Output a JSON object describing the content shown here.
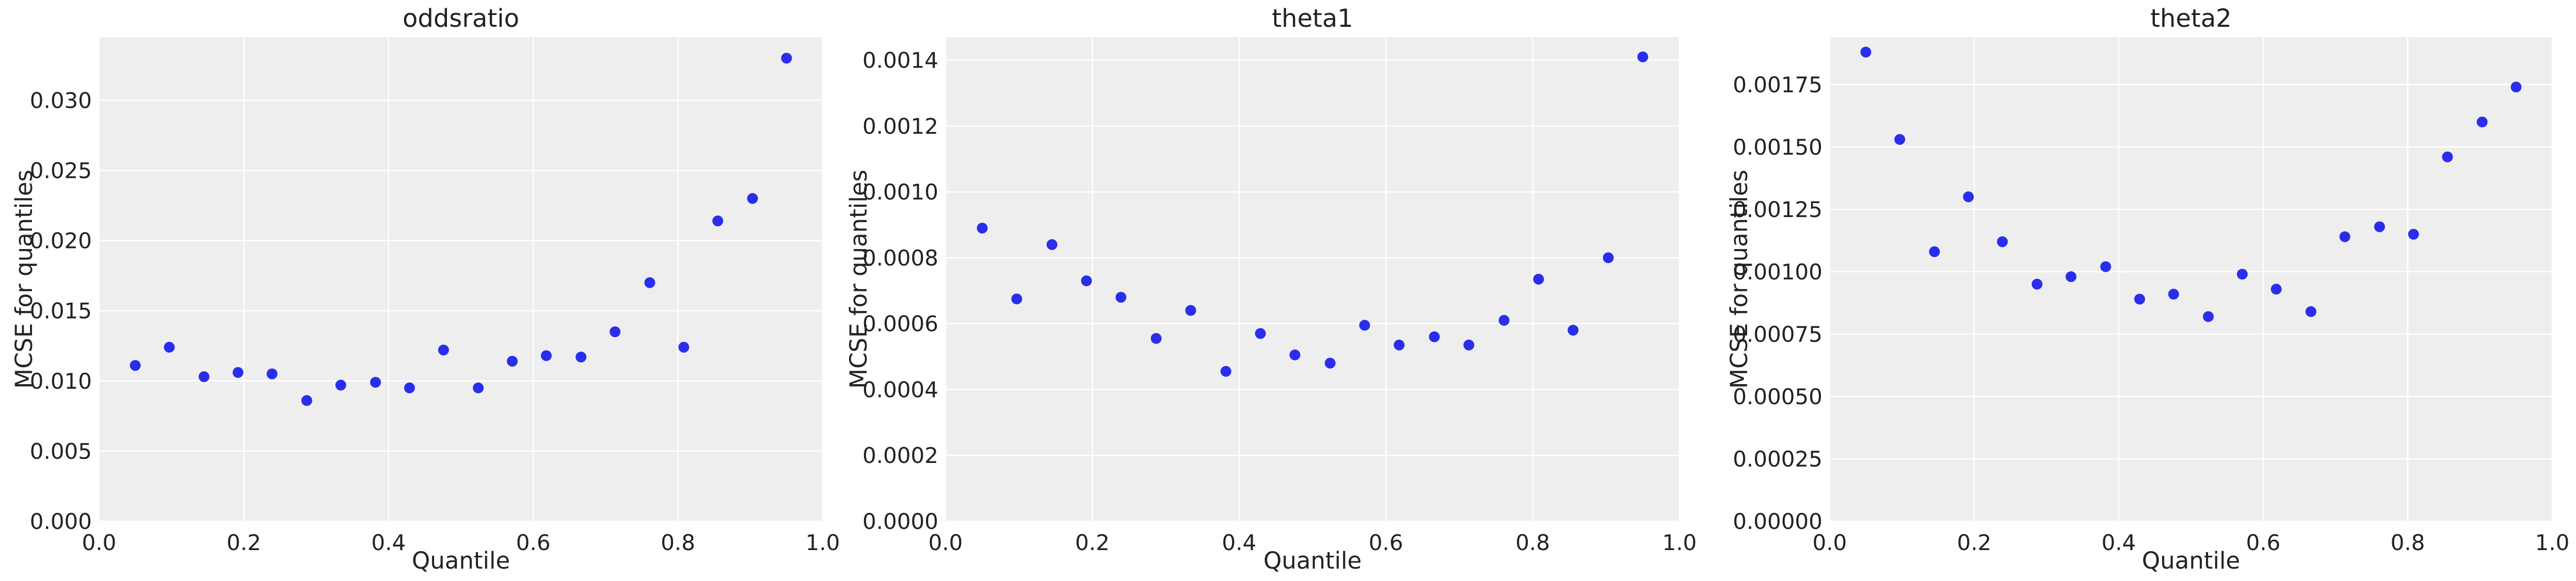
{
  "style": {
    "panel_bg": "#eeeeee",
    "grid": "#ffffff",
    "marker_color": "#2a2eec"
  },
  "chart_data": [
    {
      "type": "scatter",
      "title": "oddsratio",
      "xlabel": "Quantile",
      "ylabel": "MCSE for quantiles",
      "xlim": [
        0.0,
        1.0
      ],
      "ylim": [
        0.0,
        0.0345
      ],
      "xticks": [
        "0.0",
        "0.2",
        "0.4",
        "0.6",
        "0.8",
        "1.0"
      ],
      "yticks": [
        "0.000",
        "0.005",
        "0.010",
        "0.015",
        "0.020",
        "0.025",
        "0.030"
      ],
      "grid": true,
      "x": [
        0.05,
        0.097,
        0.145,
        0.192,
        0.239,
        0.287,
        0.334,
        0.382,
        0.429,
        0.476,
        0.524,
        0.571,
        0.618,
        0.666,
        0.713,
        0.761,
        0.808,
        0.855,
        0.903,
        0.95
      ],
      "y": [
        0.0111,
        0.0124,
        0.0103,
        0.0106,
        0.0105,
        0.0086,
        0.0097,
        0.0099,
        0.0095,
        0.0122,
        0.0095,
        0.0114,
        0.0118,
        0.0117,
        0.0135,
        0.017,
        0.0124,
        0.0214,
        0.023,
        0.033
      ]
    },
    {
      "type": "scatter",
      "title": "theta1",
      "xlabel": "Quantile",
      "ylabel": "MCSE for quantiles",
      "xlim": [
        0.0,
        1.0
      ],
      "ylim": [
        0.0,
        0.00147
      ],
      "xticks": [
        "0.0",
        "0.2",
        "0.4",
        "0.6",
        "0.8",
        "1.0"
      ],
      "yticks": [
        "0.0000",
        "0.0002",
        "0.0004",
        "0.0006",
        "0.0008",
        "0.0010",
        "0.0012",
        "0.0014"
      ],
      "grid": true,
      "x": [
        0.05,
        0.097,
        0.145,
        0.192,
        0.239,
        0.287,
        0.334,
        0.382,
        0.429,
        0.476,
        0.524,
        0.571,
        0.618,
        0.666,
        0.713,
        0.761,
        0.808,
        0.855,
        0.903,
        0.95
      ],
      "y": [
        0.00089,
        0.000675,
        0.00084,
        0.00073,
        0.00068,
        0.000555,
        0.00064,
        0.000455,
        0.00057,
        0.000505,
        0.00048,
        0.000595,
        0.000535,
        0.00056,
        0.000535,
        0.00061,
        0.000735,
        0.00058,
        0.0008,
        0.00141
      ]
    },
    {
      "type": "scatter",
      "title": "theta2",
      "xlabel": "Quantile",
      "ylabel": "MCSE for quantiles",
      "xlim": [
        0.0,
        1.0
      ],
      "ylim": [
        0.0,
        0.00194
      ],
      "xticks": [
        "0.0",
        "0.2",
        "0.4",
        "0.6",
        "0.8",
        "1.0"
      ],
      "yticks": [
        "0.00000",
        "0.00025",
        "0.00050",
        "0.00075",
        "0.00100",
        "0.00125",
        "0.00150",
        "0.00175"
      ],
      "grid": true,
      "x": [
        0.05,
        0.097,
        0.145,
        0.192,
        0.239,
        0.287,
        0.334,
        0.382,
        0.429,
        0.476,
        0.524,
        0.571,
        0.618,
        0.666,
        0.713,
        0.761,
        0.808,
        0.855,
        0.903,
        0.95
      ],
      "y": [
        0.00188,
        0.00153,
        0.00108,
        0.0013,
        0.00112,
        0.00095,
        0.00098,
        0.00102,
        0.00089,
        0.00091,
        0.00082,
        0.00099,
        0.00093,
        0.00084,
        0.00114,
        0.00118,
        0.00115,
        0.00146,
        0.0016,
        0.00174
      ]
    }
  ]
}
